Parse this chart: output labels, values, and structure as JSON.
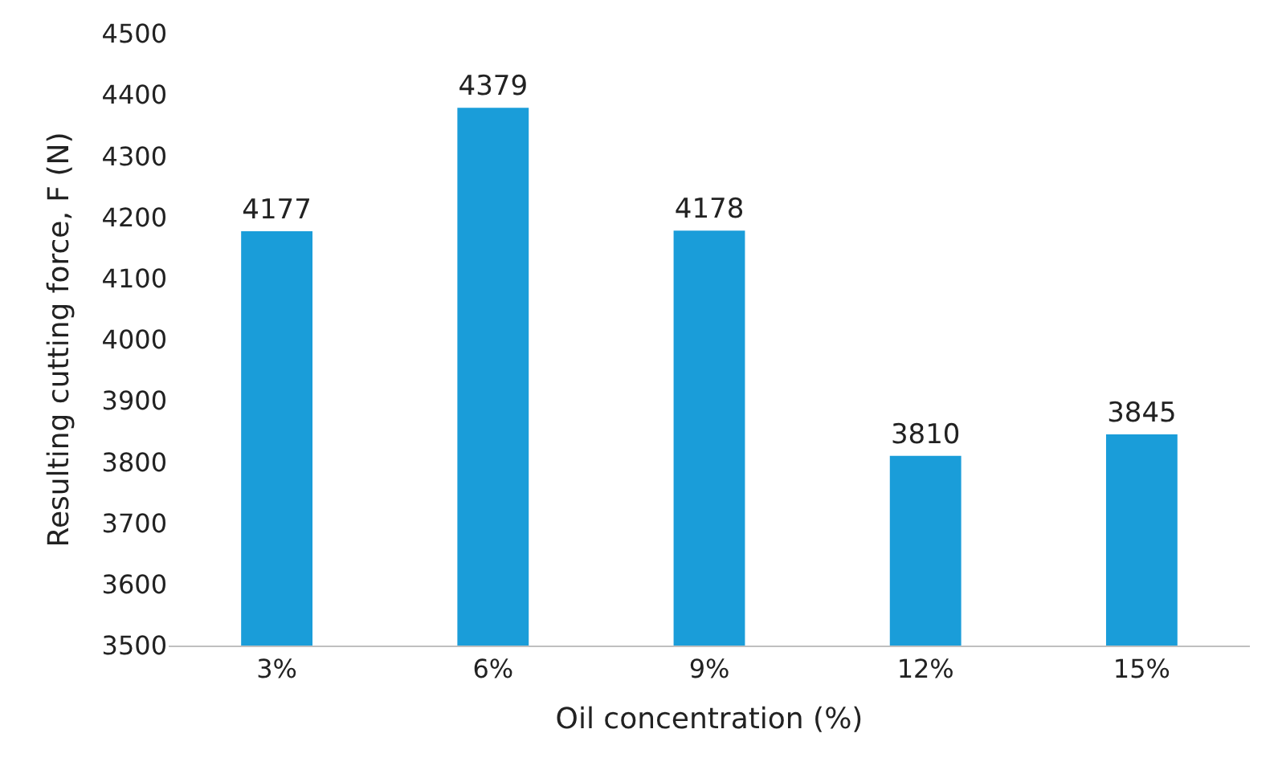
{
  "chart_data": {
    "type": "bar",
    "xlabel": "Oil concentration (%)",
    "ylabel": "Resulting cutting force, F (N)",
    "categories": [
      "3%",
      "6%",
      "9%",
      "12%",
      "15%"
    ],
    "values": [
      4177,
      4379,
      4178,
      3810,
      3845
    ],
    "color": "#1a9dd9",
    "ylim": [
      3500,
      4500
    ],
    "yticks": [
      3500,
      3600,
      3700,
      3800,
      3900,
      4000,
      4100,
      4200,
      4300,
      4400,
      4500
    ],
    "data_labels": true,
    "grid": false,
    "legend": false
  }
}
